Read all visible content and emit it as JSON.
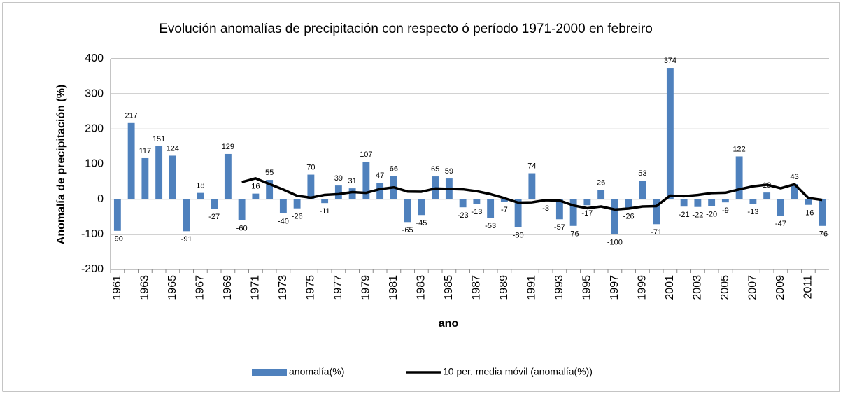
{
  "chart_data": {
    "type": "bar",
    "title": "Evolución  anomalías de  precipitación con respecto ó período 1971-2000 en febreiro",
    "x_label": "ano",
    "y_label": "Anomalía de precipitación  (%)",
    "categories": [
      "1961",
      null,
      "1963",
      null,
      "1965",
      null,
      "1967",
      null,
      "1969",
      null,
      "1971",
      null,
      "1973",
      null,
      "1975",
      null,
      "1977",
      null,
      "1979",
      null,
      "1981",
      null,
      "1983",
      null,
      "1985",
      null,
      "1987",
      null,
      "1989",
      null,
      "1991",
      null,
      "1993",
      null,
      "1995",
      null,
      "1997",
      null,
      "1999",
      null,
      "2001",
      null,
      "2003",
      null,
      "2005",
      null,
      "2007",
      null,
      "2009",
      null,
      "2011",
      null
    ],
    "series": [
      {
        "name": "anomalía(%)",
        "type": "bar",
        "color": "#4f81bd",
        "values": [
          -90,
          217,
          117,
          151,
          124,
          -91,
          18,
          -27,
          129,
          -60,
          16,
          55,
          -40,
          -26,
          70,
          -11,
          39,
          31,
          107,
          47,
          66,
          -65,
          -45,
          65,
          59,
          -23,
          -13,
          -53,
          -7,
          -80,
          74,
          -3,
          -57,
          -76,
          -17,
          26,
          -100,
          -26,
          53,
          -71,
          374,
          -21,
          -22,
          -20,
          -9,
          122,
          -13,
          19,
          -47,
          43,
          -16,
          -76
        ]
      },
      {
        "name": "10 per. media móvil (anomalía(%))",
        "type": "line",
        "color": "#000000",
        "values": [
          null,
          null,
          null,
          null,
          null,
          null,
          null,
          null,
          null,
          48.8,
          59.4,
          43.2,
          27.5,
          9.8,
          4.4,
          12.4,
          14.5,
          20.3,
          18.1,
          28.8,
          33.8,
          21.8,
          21.3,
          30.4,
          29.3,
          28.1,
          22.9,
          14.5,
          3.1,
          -9.6,
          -8.8,
          -2.6,
          -3.8,
          -17.9,
          -25.5,
          -20.6,
          -29.3,
          -26.6,
          -20.6,
          -19.7,
          10.3,
          8.5,
          12.0,
          17.6,
          18.4,
          28.0,
          36.7,
          41.2,
          31.2,
          42.6,
          3.6,
          -1.9
        ]
      }
    ],
    "ylim": [
      -200,
      400
    ],
    "yticks": [
      -200,
      -100,
      0,
      100,
      200,
      300,
      400
    ],
    "grid": true,
    "legend": "bottom"
  }
}
